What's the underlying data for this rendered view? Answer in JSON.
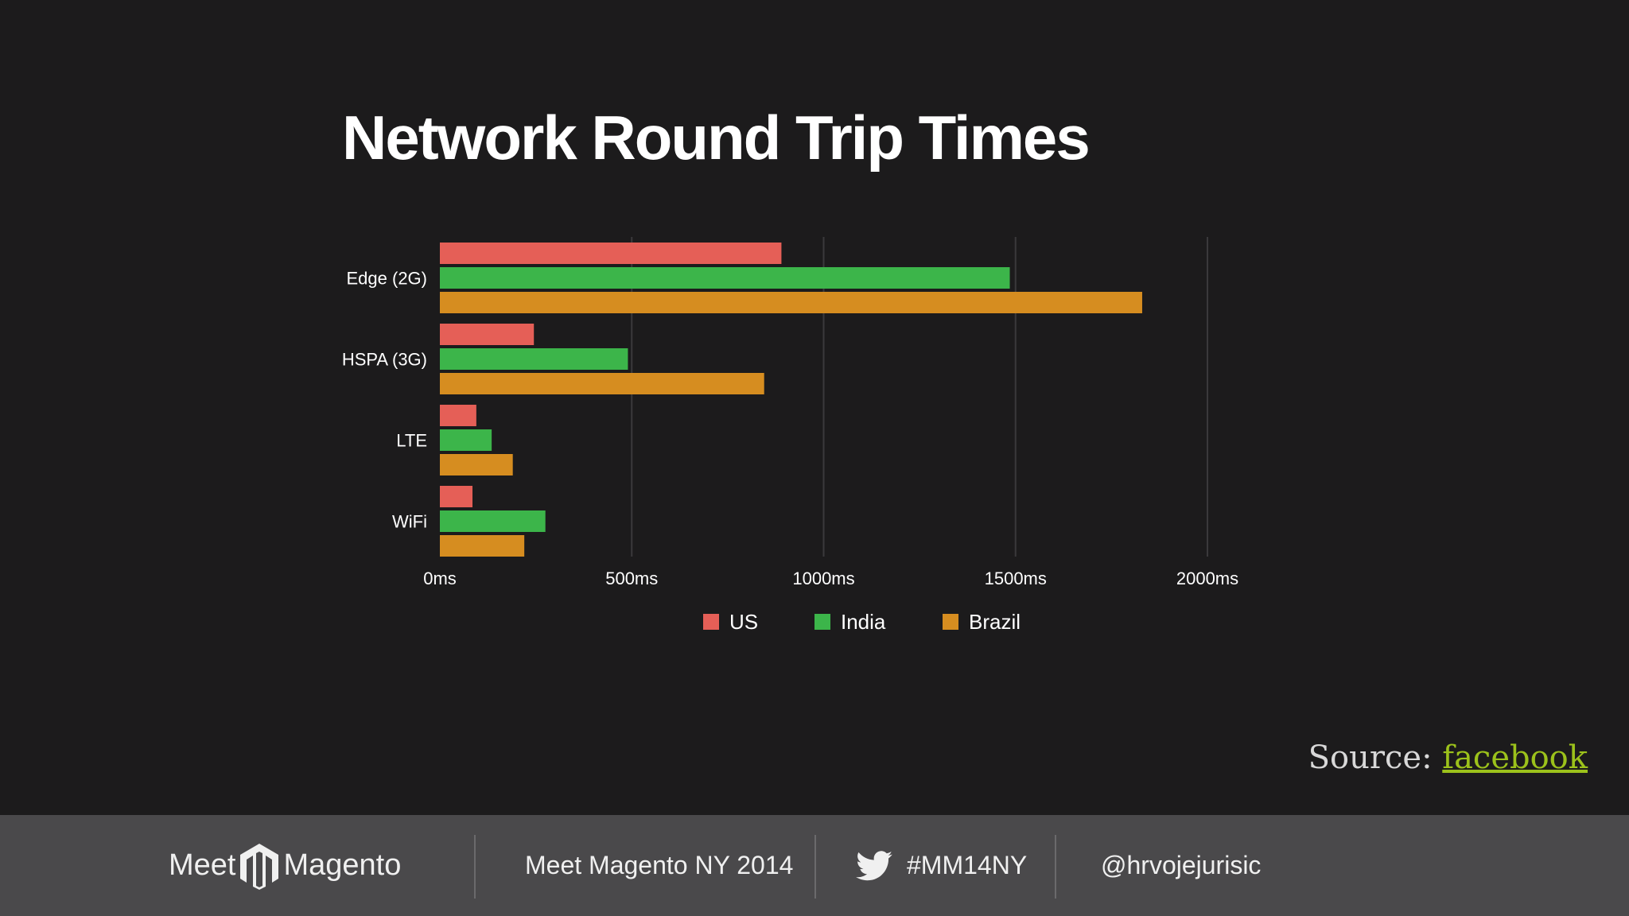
{
  "slide": {
    "title": "Network Round Trip Times",
    "source_label": "Source:",
    "source_link": "facebook"
  },
  "footer": {
    "logo_left": "Meet",
    "logo_right": "Magento",
    "event": "Meet Magento NY 2014",
    "hashtag": "#MM14NY",
    "handle": "@hrvojejurisic"
  },
  "colors": {
    "US": "#e55f57",
    "India": "#3cb54a",
    "Brazil": "#d68d20",
    "grid": "#3a393b",
    "background": "#1c1b1c"
  },
  "chart_data": {
    "type": "bar",
    "orientation": "horizontal",
    "title": "Network Round Trip Times",
    "categories": [
      "Edge (2G)",
      "HSPA (3G)",
      "LTE",
      "WiFi"
    ],
    "series": [
      {
        "name": "US",
        "values": [
          890,
          245,
          95,
          85
        ]
      },
      {
        "name": "India",
        "values": [
          1485,
          490,
          135,
          275
        ]
      },
      {
        "name": "Brazil",
        "values": [
          1830,
          845,
          190,
          220
        ]
      }
    ],
    "x_ticks": [
      "0ms",
      "500ms",
      "1000ms",
      "1500ms",
      "2000ms"
    ],
    "xlim": [
      0,
      2000
    ],
    "grid": true,
    "legend_position": "bottom"
  }
}
